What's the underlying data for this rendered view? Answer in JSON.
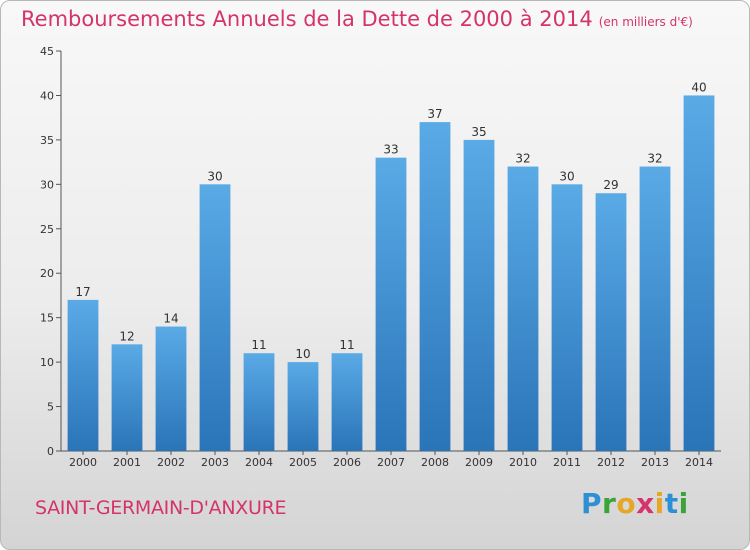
{
  "title": "Remboursements Annuels de la Dette de 2000 à 2014",
  "subtitle": "(en milliers d'€)",
  "commune": "SAINT-GERMAIN-D'ANXURE",
  "logo": {
    "letters": [
      "P",
      "r",
      "o",
      "x",
      "i",
      "t",
      "i"
    ],
    "colors": [
      "#2d8fd4",
      "#3aa33a",
      "#e8a628",
      "#d5336c",
      "#e8a628",
      "#2d8fd4",
      "#3aa33a"
    ]
  },
  "colors": {
    "bar": "#4f9fdd",
    "bar_dark": "#2e7bbf",
    "title": "#d5336c",
    "axis": "#555555",
    "grid": "#cccccc"
  },
  "chart_data": {
    "type": "bar",
    "categories": [
      "2000",
      "2001",
      "2002",
      "2003",
      "2004",
      "2005",
      "2006",
      "2007",
      "2008",
      "2009",
      "2010",
      "2011",
      "2012",
      "2013",
      "2014"
    ],
    "values": [
      17,
      12,
      14,
      30,
      11,
      10,
      11,
      33,
      37,
      35,
      32,
      30,
      29,
      32,
      40
    ],
    "ylim": [
      0,
      45
    ],
    "yticks": [
      0,
      5,
      10,
      15,
      20,
      25,
      30,
      35,
      40,
      45
    ],
    "grid": false
  }
}
